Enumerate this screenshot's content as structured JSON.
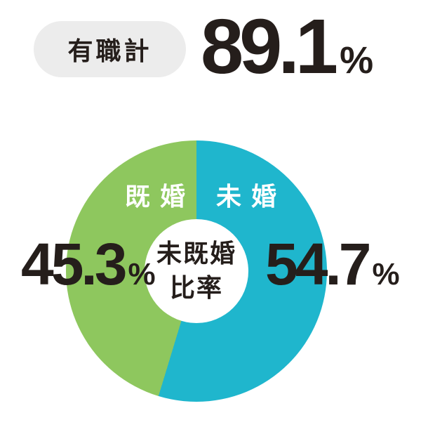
{
  "header": {
    "badge_label": "有職計",
    "value": "89.1",
    "unit": "%"
  },
  "chart_data": {
    "type": "pie",
    "donut": true,
    "title": "未既婚比率",
    "center_label_lines": [
      "未既婚",
      "比率"
    ],
    "series": [
      {
        "name": "未婚",
        "value": 54.7,
        "color": "#1fb6cd"
      },
      {
        "name": "既婚",
        "value": 45.3,
        "color": "#8ec75e"
      }
    ],
    "start_angle_deg": 0,
    "direction": "clockwise",
    "value_suffix": "%",
    "slice_label_color": "#ffffff"
  },
  "colors": {
    "background": "#ffffff",
    "text_dark": "#251e1b",
    "badge_background": "#ececec",
    "unmarried_cyan": "#1fb6cd",
    "married_green": "#8ec75e"
  }
}
